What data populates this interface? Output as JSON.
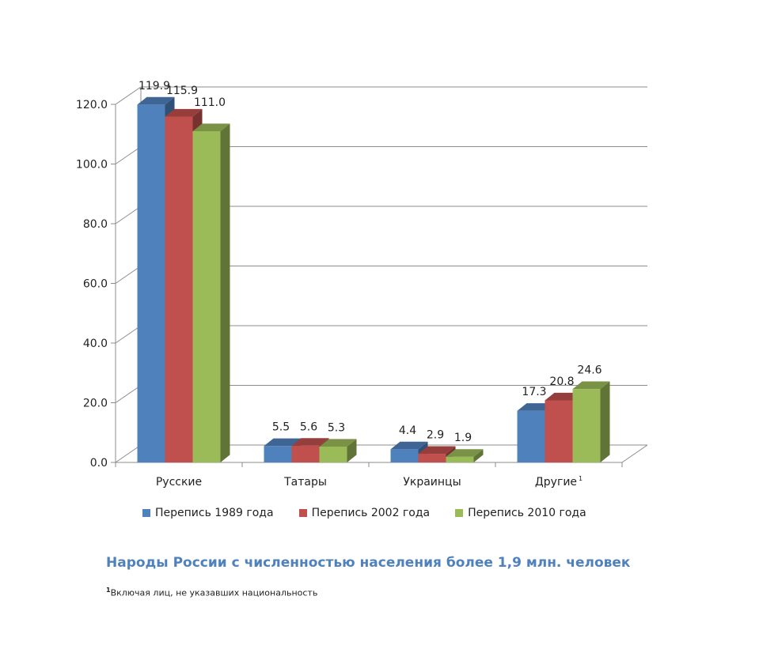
{
  "chart_data": {
    "type": "bar",
    "title": "Народы России с численностью населения более 1,9 млн. человек",
    "categories": [
      "Русские",
      "Татары",
      "Украинцы",
      "Другие"
    ],
    "category_superscripts": [
      "",
      "",
      "",
      "1"
    ],
    "series": [
      {
        "name": "Перепись 1989 года",
        "color": "#4f81bd",
        "values": [
          119.9,
          5.5,
          4.4,
          17.3
        ]
      },
      {
        "name": "Перепись 2002 года",
        "color": "#c0504d",
        "values": [
          115.9,
          5.6,
          2.9,
          20.8
        ]
      },
      {
        "name": "Перепись 2010 года",
        "color": "#9bbb59",
        "values": [
          111.0,
          5.3,
          1.9,
          24.6
        ]
      }
    ],
    "yticks": [
      "0.0",
      "20.0",
      "40.0",
      "60.0",
      "80.0",
      "100.0",
      "120.0"
    ],
    "ylim": [
      0,
      120
    ],
    "xlabel": "",
    "ylabel": "",
    "grid": true,
    "legend_position": "bottom"
  },
  "footnote": {
    "marker": "1",
    "text": "Включая лиц, не указавших национальность"
  }
}
